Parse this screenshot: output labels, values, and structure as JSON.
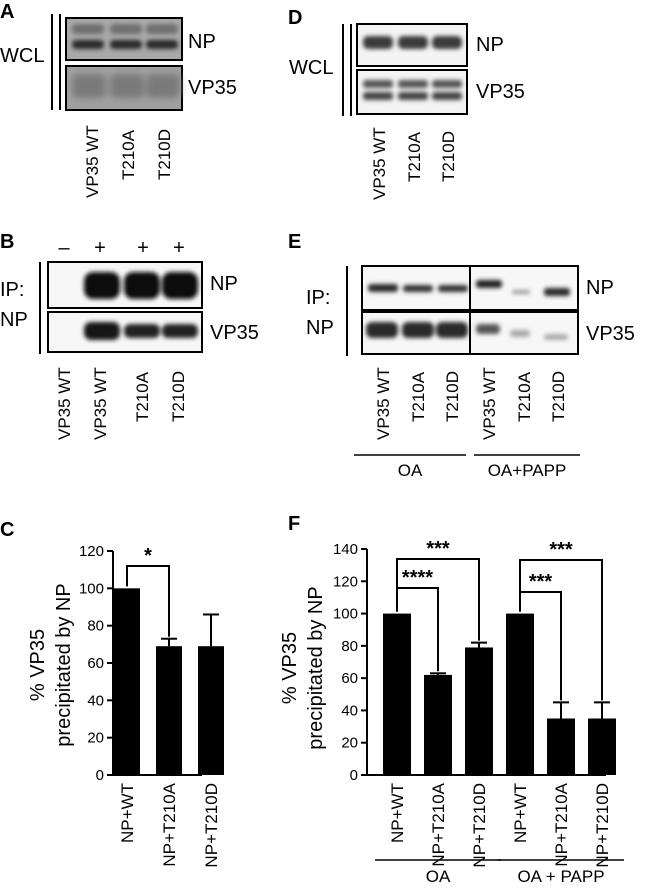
{
  "panels": {
    "A": {
      "letter": "A",
      "group_label": "WCL",
      "band_labels": [
        "NP",
        "VP35"
      ],
      "lanes": [
        "VP35 WT",
        "T210A",
        "T210D"
      ]
    },
    "B": {
      "letter": "B",
      "signs": [
        "–",
        "+",
        "+",
        "+"
      ],
      "ip_label": "IP:",
      "ip_target": "NP",
      "band_labels": [
        "NP",
        "VP35"
      ],
      "lanes": [
        "VP35 WT",
        "VP35 WT",
        "T210A",
        "T210D"
      ]
    },
    "D": {
      "letter": "D",
      "group_label": "WCL",
      "band_labels": [
        "NP",
        "VP35"
      ],
      "lanes": [
        "VP35 WT",
        "T210A",
        "T210D"
      ]
    },
    "E": {
      "letter": "E",
      "ip_label": "IP:",
      "ip_target": "NP",
      "band_labels": [
        "NP",
        "VP35"
      ],
      "lanes": [
        "VP35 WT",
        "T210A",
        "T210D",
        "VP35 WT",
        "T210A",
        "T210D"
      ],
      "groups": [
        "OA",
        "OA+PAPP"
      ]
    }
  },
  "chart_data": [
    {
      "letter": "C",
      "type": "bar",
      "ylabel_line1": "% VP35",
      "ylabel_line2": "precipitated by NP",
      "ylim": [
        0,
        120
      ],
      "yticks": [
        0,
        20,
        40,
        60,
        80,
        100,
        120
      ],
      "categories": [
        "NP+WT",
        "NP+T210A",
        "NP+T210D"
      ],
      "values": [
        100,
        69,
        69
      ],
      "errors": [
        0,
        4,
        17
      ],
      "significance": [
        {
          "from": 0,
          "to": 1,
          "label": "*"
        }
      ],
      "groups": []
    },
    {
      "letter": "F",
      "type": "bar",
      "ylabel_line1": "% VP35",
      "ylabel_line2": "precipitated by NP",
      "ylim": [
        0,
        140
      ],
      "yticks": [
        0,
        20,
        40,
        60,
        80,
        100,
        120,
        140
      ],
      "categories": [
        "NP+WT",
        "NP+T210A",
        "NP+T210D",
        "NP+WT",
        "NP+T210A",
        "NP+T210D"
      ],
      "values": [
        100,
        62,
        79,
        100,
        35,
        35
      ],
      "errors": [
        0,
        1,
        3,
        0,
        10,
        10
      ],
      "significance": [
        {
          "from": 0,
          "to": 1,
          "label": "****"
        },
        {
          "from": 0,
          "to": 2,
          "label": "***"
        },
        {
          "from": 3,
          "to": 4,
          "label": "***"
        },
        {
          "from": 3,
          "to": 5,
          "label": "***"
        }
      ],
      "groups": [
        {
          "label": "OA",
          "from": 0,
          "to": 2
        },
        {
          "label": "OA + PAPP",
          "from": 3,
          "to": 5
        }
      ]
    }
  ]
}
